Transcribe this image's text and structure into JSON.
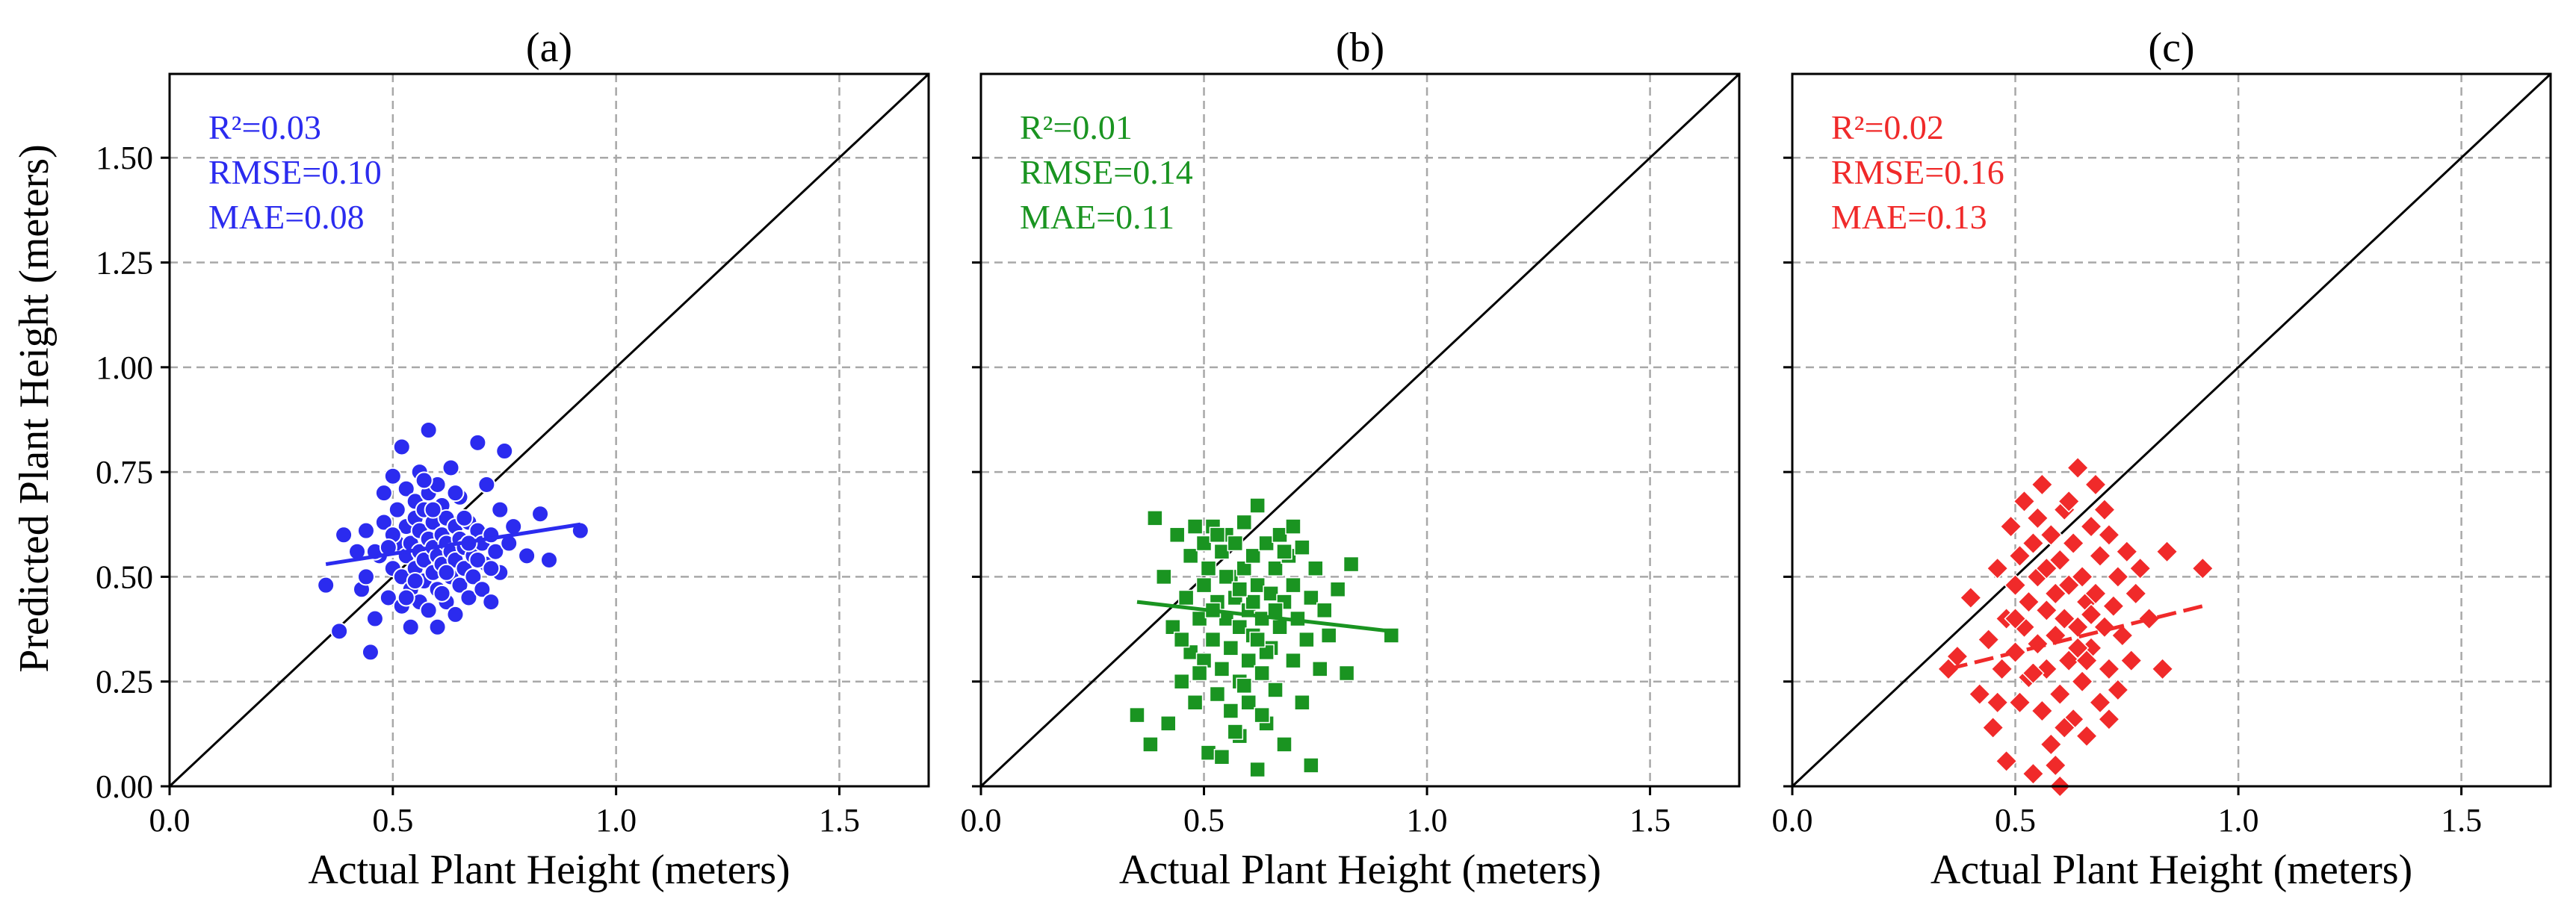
{
  "figure": {
    "ylabel": "Predicted Plant Height (meters)"
  },
  "chart_data": [
    {
      "type": "scatter",
      "title": "(a)",
      "xlabel": "Actual Plant Height (meters)",
      "ylabel": "Predicted Plant Height (meters)",
      "xlim": [
        0.0,
        1.7
      ],
      "ylim": [
        0.0,
        1.7
      ],
      "xticks": [
        "0.0",
        "0.5",
        "1.0",
        "1.5"
      ],
      "yticks": [
        "0.00",
        "0.25",
        "0.50",
        "0.75",
        "1.00",
        "1.25",
        "1.50"
      ],
      "grid": true,
      "marker": "circle",
      "color": "#2b2bef",
      "metrics": [
        "R²=0.03",
        "RMSE=0.10",
        "MAE=0.08"
      ],
      "fit": {
        "x": [
          0.35,
          0.92
        ],
        "y": [
          0.53,
          0.625
        ]
      },
      "points": [
        [
          0.35,
          0.48
        ],
        [
          0.39,
          0.6
        ],
        [
          0.38,
          0.37
        ],
        [
          0.42,
          0.56
        ],
        [
          0.43,
          0.47
        ],
        [
          0.44,
          0.61
        ],
        [
          0.45,
          0.32
        ],
        [
          0.46,
          0.4
        ],
        [
          0.47,
          0.55
        ],
        [
          0.48,
          0.63
        ],
        [
          0.48,
          0.7
        ],
        [
          0.49,
          0.45
        ],
        [
          0.5,
          0.52
        ],
        [
          0.5,
          0.74
        ],
        [
          0.51,
          0.58
        ],
        [
          0.51,
          0.66
        ],
        [
          0.52,
          0.43
        ],
        [
          0.52,
          0.5
        ],
        [
          0.52,
          0.81
        ],
        [
          0.53,
          0.55
        ],
        [
          0.53,
          0.62
        ],
        [
          0.53,
          0.71
        ],
        [
          0.54,
          0.38
        ],
        [
          0.54,
          0.47
        ],
        [
          0.54,
          0.58
        ],
        [
          0.55,
          0.52
        ],
        [
          0.55,
          0.64
        ],
        [
          0.55,
          0.68
        ],
        [
          0.56,
          0.44
        ],
        [
          0.56,
          0.56
        ],
        [
          0.56,
          0.61
        ],
        [
          0.56,
          0.75
        ],
        [
          0.57,
          0.49
        ],
        [
          0.57,
          0.54
        ],
        [
          0.57,
          0.66
        ],
        [
          0.58,
          0.42
        ],
        [
          0.58,
          0.59
        ],
        [
          0.58,
          0.7
        ],
        [
          0.58,
          0.85
        ],
        [
          0.59,
          0.51
        ],
        [
          0.59,
          0.57
        ],
        [
          0.59,
          0.63
        ],
        [
          0.6,
          0.38
        ],
        [
          0.6,
          0.47
        ],
        [
          0.6,
          0.55
        ],
        [
          0.6,
          0.72
        ],
        [
          0.61,
          0.53
        ],
        [
          0.61,
          0.6
        ],
        [
          0.61,
          0.67
        ],
        [
          0.62,
          0.44
        ],
        [
          0.62,
          0.58
        ],
        [
          0.62,
          0.64
        ],
        [
          0.63,
          0.5
        ],
        [
          0.63,
          0.56
        ],
        [
          0.63,
          0.76
        ],
        [
          0.64,
          0.41
        ],
        [
          0.64,
          0.54
        ],
        [
          0.64,
          0.62
        ],
        [
          0.65,
          0.48
        ],
        [
          0.65,
          0.59
        ],
        [
          0.65,
          0.69
        ],
        [
          0.66,
          0.52
        ],
        [
          0.66,
          0.57
        ],
        [
          0.67,
          0.45
        ],
        [
          0.67,
          0.63
        ],
        [
          0.68,
          0.5
        ],
        [
          0.68,
          0.55
        ],
        [
          0.69,
          0.61
        ],
        [
          0.69,
          0.82
        ],
        [
          0.7,
          0.47
        ],
        [
          0.7,
          0.58
        ],
        [
          0.71,
          0.53
        ],
        [
          0.71,
          0.72
        ],
        [
          0.72,
          0.44
        ],
        [
          0.72,
          0.6
        ],
        [
          0.73,
          0.56
        ],
        [
          0.74,
          0.51
        ],
        [
          0.74,
          0.66
        ],
        [
          0.75,
          0.8
        ],
        [
          0.76,
          0.58
        ],
        [
          0.77,
          0.62
        ],
        [
          0.8,
          0.55
        ],
        [
          0.83,
          0.65
        ],
        [
          0.85,
          0.54
        ],
        [
          0.92,
          0.61
        ],
        [
          0.46,
          0.56
        ],
        [
          0.5,
          0.6
        ],
        [
          0.55,
          0.49
        ],
        [
          0.59,
          0.66
        ],
        [
          0.62,
          0.51
        ],
        [
          0.66,
          0.64
        ],
        [
          0.69,
          0.54
        ],
        [
          0.53,
          0.45
        ],
        [
          0.57,
          0.73
        ],
        [
          0.61,
          0.46
        ],
        [
          0.64,
          0.7
        ],
        [
          0.49,
          0.57
        ],
        [
          0.67,
          0.58
        ],
        [
          0.72,
          0.52
        ],
        [
          0.44,
          0.5
        ]
      ]
    },
    {
      "type": "scatter",
      "title": "(b)",
      "xlabel": "Actual Plant Height (meters)",
      "ylabel": "",
      "xlim": [
        0.0,
        1.7
      ],
      "ylim": [
        0.0,
        1.7
      ],
      "xticks": [
        "0.0",
        "0.5",
        "1.0",
        "1.5"
      ],
      "yticks": [],
      "grid": true,
      "marker": "square",
      "color": "#1a9421",
      "metrics": [
        "R²=0.01",
        "RMSE=0.14",
        "MAE=0.11"
      ],
      "fit": {
        "x": [
          0.35,
          0.92
        ],
        "y": [
          0.44,
          0.37
        ]
      },
      "points": [
        [
          0.35,
          0.17
        ],
        [
          0.38,
          0.1
        ],
        [
          0.39,
          0.64
        ],
        [
          0.41,
          0.5
        ],
        [
          0.42,
          0.15
        ],
        [
          0.43,
          0.38
        ],
        [
          0.44,
          0.6
        ],
        [
          0.45,
          0.25
        ],
        [
          0.46,
          0.45
        ],
        [
          0.47,
          0.55
        ],
        [
          0.47,
          0.32
        ],
        [
          0.48,
          0.62
        ],
        [
          0.48,
          0.2
        ],
        [
          0.49,
          0.4
        ],
        [
          0.5,
          0.58
        ],
        [
          0.5,
          0.3
        ],
        [
          0.5,
          0.48
        ],
        [
          0.51,
          0.08
        ],
        [
          0.51,
          0.52
        ],
        [
          0.52,
          0.35
        ],
        [
          0.52,
          0.62
        ],
        [
          0.53,
          0.22
        ],
        [
          0.53,
          0.44
        ],
        [
          0.54,
          0.56
        ],
        [
          0.54,
          0.28
        ],
        [
          0.54,
          0.07
        ],
        [
          0.55,
          0.4
        ],
        [
          0.55,
          0.6
        ],
        [
          0.56,
          0.18
        ],
        [
          0.56,
          0.5
        ],
        [
          0.56,
          0.33
        ],
        [
          0.57,
          0.45
        ],
        [
          0.57,
          0.58
        ],
        [
          0.58,
          0.25
        ],
        [
          0.58,
          0.38
        ],
        [
          0.58,
          0.12
        ],
        [
          0.59,
          0.52
        ],
        [
          0.59,
          0.63
        ],
        [
          0.6,
          0.3
        ],
        [
          0.6,
          0.42
        ],
        [
          0.6,
          0.2
        ],
        [
          0.61,
          0.55
        ],
        [
          0.61,
          0.36
        ],
        [
          0.62,
          0.04
        ],
        [
          0.62,
          0.48
        ],
        [
          0.62,
          0.67
        ],
        [
          0.63,
          0.27
        ],
        [
          0.63,
          0.4
        ],
        [
          0.64,
          0.58
        ],
        [
          0.64,
          0.15
        ],
        [
          0.65,
          0.46
        ],
        [
          0.65,
          0.33
        ],
        [
          0.66,
          0.52
        ],
        [
          0.66,
          0.23
        ],
        [
          0.67,
          0.6
        ],
        [
          0.67,
          0.38
        ],
        [
          0.68,
          0.44
        ],
        [
          0.68,
          0.1
        ],
        [
          0.69,
          0.55
        ],
        [
          0.7,
          0.3
        ],
        [
          0.7,
          0.48
        ],
        [
          0.71,
          0.4
        ],
        [
          0.72,
          0.57
        ],
        [
          0.72,
          0.2
        ],
        [
          0.73,
          0.35
        ],
        [
          0.74,
          0.45
        ],
        [
          0.74,
          0.05
        ],
        [
          0.75,
          0.52
        ],
        [
          0.76,
          0.28
        ],
        [
          0.77,
          0.42
        ],
        [
          0.78,
          0.36
        ],
        [
          0.8,
          0.47
        ],
        [
          0.82,
          0.27
        ],
        [
          0.83,
          0.53
        ],
        [
          0.92,
          0.36
        ],
        [
          0.45,
          0.35
        ],
        [
          0.49,
          0.27
        ],
        [
          0.53,
          0.6
        ],
        [
          0.57,
          0.13
        ],
        [
          0.61,
          0.44
        ],
        [
          0.64,
          0.32
        ],
        [
          0.68,
          0.56
        ],
        [
          0.55,
          0.5
        ],
        [
          0.59,
          0.24
        ],
        [
          0.63,
          0.17
        ],
        [
          0.66,
          0.42
        ],
        [
          0.7,
          0.62
        ],
        [
          0.52,
          0.42
        ],
        [
          0.58,
          0.47
        ],
        [
          0.62,
          0.35
        ]
      ]
    },
    {
      "type": "scatter",
      "title": "(c)",
      "xlabel": "Actual Plant Height (meters)",
      "ylabel": "",
      "xlim": [
        0.0,
        1.7
      ],
      "ylim": [
        0.0,
        1.7
      ],
      "xticks": [
        "0.0",
        "0.5",
        "1.0",
        "1.5"
      ],
      "yticks": [],
      "grid": true,
      "marker": "diamond",
      "color": "#f02a2a",
      "metrics": [
        "R²=0.02",
        "RMSE=0.16",
        "MAE=0.13"
      ],
      "fit": {
        "x": [
          0.35,
          0.92
        ],
        "y": [
          0.28,
          0.43
        ]
      },
      "points": [
        [
          0.35,
          0.28
        ],
        [
          0.37,
          0.31
        ],
        [
          0.4,
          0.45
        ],
        [
          0.42,
          0.22
        ],
        [
          0.44,
          0.35
        ],
        [
          0.45,
          0.14
        ],
        [
          0.46,
          0.52
        ],
        [
          0.47,
          0.28
        ],
        [
          0.48,
          0.4
        ],
        [
          0.48,
          0.06
        ],
        [
          0.49,
          0.62
        ],
        [
          0.5,
          0.32
        ],
        [
          0.5,
          0.48
        ],
        [
          0.51,
          0.2
        ],
        [
          0.51,
          0.55
        ],
        [
          0.52,
          0.38
        ],
        [
          0.52,
          0.68
        ],
        [
          0.53,
          0.26
        ],
        [
          0.53,
          0.44
        ],
        [
          0.54,
          0.03
        ],
        [
          0.54,
          0.58
        ],
        [
          0.55,
          0.34
        ],
        [
          0.55,
          0.5
        ],
        [
          0.56,
          0.18
        ],
        [
          0.56,
          0.72
        ],
        [
          0.57,
          0.42
        ],
        [
          0.57,
          0.28
        ],
        [
          0.58,
          0.6
        ],
        [
          0.58,
          0.1
        ],
        [
          0.59,
          0.46
        ],
        [
          0.59,
          0.36
        ],
        [
          0.6,
          0.22
        ],
        [
          0.6,
          0.54
        ],
        [
          0.6,
          0.0
        ],
        [
          0.61,
          0.4
        ],
        [
          0.61,
          0.66
        ],
        [
          0.62,
          0.3
        ],
        [
          0.62,
          0.48
        ],
        [
          0.63,
          0.16
        ],
        [
          0.63,
          0.58
        ],
        [
          0.64,
          0.76
        ],
        [
          0.64,
          0.38
        ],
        [
          0.65,
          0.25
        ],
        [
          0.65,
          0.5
        ],
        [
          0.66,
          0.44
        ],
        [
          0.66,
          0.12
        ],
        [
          0.67,
          0.62
        ],
        [
          0.67,
          0.33
        ],
        [
          0.68,
          0.46
        ],
        [
          0.68,
          0.72
        ],
        [
          0.69,
          0.2
        ],
        [
          0.69,
          0.55
        ],
        [
          0.7,
          0.38
        ],
        [
          0.71,
          0.28
        ],
        [
          0.71,
          0.6
        ],
        [
          0.72,
          0.43
        ],
        [
          0.73,
          0.5
        ],
        [
          0.73,
          0.23
        ],
        [
          0.74,
          0.36
        ],
        [
          0.75,
          0.56
        ],
        [
          0.76,
          0.3
        ],
        [
          0.77,
          0.46
        ],
        [
          0.78,
          0.52
        ],
        [
          0.8,
          0.4
        ],
        [
          0.83,
          0.28
        ],
        [
          0.84,
          0.56
        ],
        [
          0.92,
          0.52
        ],
        [
          0.46,
          0.2
        ],
        [
          0.5,
          0.4
        ],
        [
          0.54,
          0.27
        ],
        [
          0.57,
          0.52
        ],
        [
          0.61,
          0.14
        ],
        [
          0.64,
          0.33
        ],
        [
          0.67,
          0.41
        ],
        [
          0.71,
          0.16
        ],
        [
          0.55,
          0.64
        ],
        [
          0.59,
          0.05
        ],
        [
          0.62,
          0.68
        ],
        [
          0.66,
          0.3
        ],
        [
          0.7,
          0.66
        ]
      ]
    }
  ]
}
